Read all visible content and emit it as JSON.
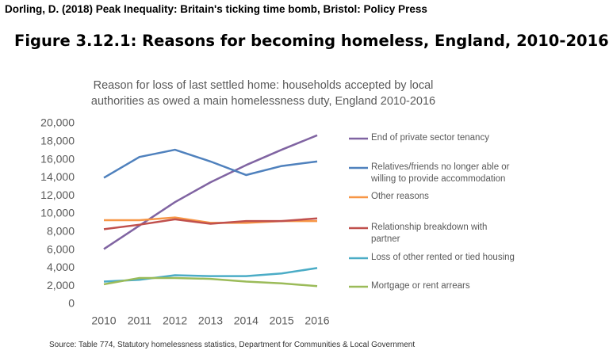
{
  "citation": "Dorling, D. (2018) Peak Inequality: Britain's ticking time bomb, Bristol: Policy Press",
  "figure_title": "Figure 3.12.1: Reasons for becoming homeless, England, 2010-2016",
  "chart_data": {
    "type": "line",
    "title": "Reason for loss of last settled home: households accepted by local authorities as owed a main homelessness duty, England 2010-2016",
    "source": "Source: Table 774, Statutory homelessness statistics, Department for Communities & Local Government",
    "categories": [
      "2010",
      "2011",
      "2012",
      "2013",
      "2014",
      "2015",
      "2016"
    ],
    "ylim": [
      0,
      20000
    ],
    "yticks": [
      0,
      {
        "value": 2000,
        "label": "2,000"
      },
      {
        "value": 4000,
        "label": "4,000"
      },
      {
        "value": 6000,
        "label": "6,000"
      },
      {
        "value": 8000,
        "label": "8,000"
      },
      {
        "value": 10000,
        "label": "10,000"
      },
      {
        "value": 12000,
        "label": "12,000"
      },
      {
        "value": 14000,
        "label": "14,000"
      },
      {
        "value": 16000,
        "label": "16,000"
      },
      {
        "value": 18000,
        "label": "18,000"
      },
      {
        "value": 20000,
        "label": "20,000"
      }
    ],
    "grid": false,
    "series": [
      {
        "name": "End of private sector tenancy",
        "color": "#8064a2",
        "values": [
          6100,
          8700,
          11300,
          13500,
          15400,
          17100,
          18700
        ]
      },
      {
        "name": "Relatives/friends no longer able or willing to provide accommodation",
        "color": "#4f81bd",
        "values": [
          14000,
          16300,
          17100,
          15800,
          14300,
          15300,
          15800
        ]
      },
      {
        "name": "Other reasons",
        "color": "#f79646",
        "values": [
          9300,
          9300,
          9600,
          9000,
          9000,
          9200,
          9200
        ]
      },
      {
        "name": "Relationship breakdown with partner",
        "color": "#c0504d",
        "values": [
          8300,
          8800,
          9400,
          8900,
          9200,
          9200,
          9500
        ]
      },
      {
        "name": "Loss of other rented or tied housing",
        "color": "#4bacc6",
        "values": [
          2500,
          2700,
          3200,
          3100,
          3100,
          3400,
          4000
        ]
      },
      {
        "name": "Mortgage or rent arrears",
        "color": "#9bbb59",
        "values": [
          2200,
          2900,
          2900,
          2800,
          2500,
          2300,
          2000
        ]
      }
    ]
  }
}
